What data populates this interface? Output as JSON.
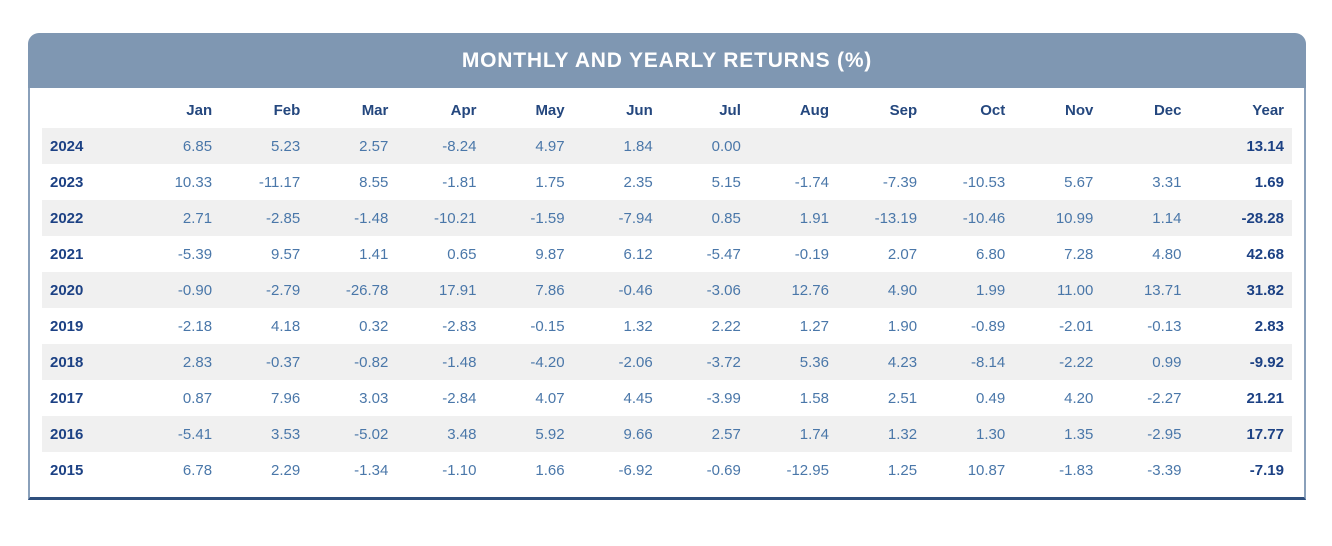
{
  "title": "MONTHLY AND YEARLY RETURNS (%)",
  "colors": {
    "header_band_bg": "#7f97b2",
    "header_band_text": "#ffffff",
    "column_header_text": "#24477e",
    "value_text": "#4a77a9",
    "year_label_text": "#1c4184",
    "stripe_bg": "#f0f0f0",
    "border_side": "#8aa0ba",
    "border_bottom": "#2f4f7d"
  },
  "chart_data": {
    "type": "table",
    "title": "MONTHLY AND YEARLY RETURNS (%)",
    "corner_label": "",
    "month_columns": [
      "Jan",
      "Feb",
      "Mar",
      "Apr",
      "May",
      "Jun",
      "Jul",
      "Aug",
      "Sep",
      "Oct",
      "Nov",
      "Dec"
    ],
    "total_column": "Year",
    "rows": [
      {
        "year": "2024",
        "values": [
          "6.85",
          "5.23",
          "2.57",
          "-8.24",
          "4.97",
          "1.84",
          "0.00",
          "",
          "",
          "",
          "",
          ""
        ],
        "year_total": "13.14"
      },
      {
        "year": "2023",
        "values": [
          "10.33",
          "-11.17",
          "8.55",
          "-1.81",
          "1.75",
          "2.35",
          "5.15",
          "-1.74",
          "-7.39",
          "-10.53",
          "5.67",
          "3.31"
        ],
        "year_total": "1.69"
      },
      {
        "year": "2022",
        "values": [
          "2.71",
          "-2.85",
          "-1.48",
          "-10.21",
          "-1.59",
          "-7.94",
          "0.85",
          "1.91",
          "-13.19",
          "-10.46",
          "10.99",
          "1.14"
        ],
        "year_total": "-28.28"
      },
      {
        "year": "2021",
        "values": [
          "-5.39",
          "9.57",
          "1.41",
          "0.65",
          "9.87",
          "6.12",
          "-5.47",
          "-0.19",
          "2.07",
          "6.80",
          "7.28",
          "4.80"
        ],
        "year_total": "42.68"
      },
      {
        "year": "2020",
        "values": [
          "-0.90",
          "-2.79",
          "-26.78",
          "17.91",
          "7.86",
          "-0.46",
          "-3.06",
          "12.76",
          "4.90",
          "1.99",
          "11.00",
          "13.71"
        ],
        "year_total": "31.82"
      },
      {
        "year": "2019",
        "values": [
          "-2.18",
          "4.18",
          "0.32",
          "-2.83",
          "-0.15",
          "1.32",
          "2.22",
          "1.27",
          "1.90",
          "-0.89",
          "-2.01",
          "-0.13"
        ],
        "year_total": "2.83"
      },
      {
        "year": "2018",
        "values": [
          "2.83",
          "-0.37",
          "-0.82",
          "-1.48",
          "-4.20",
          "-2.06",
          "-3.72",
          "5.36",
          "4.23",
          "-8.14",
          "-2.22",
          "0.99"
        ],
        "year_total": "-9.92"
      },
      {
        "year": "2017",
        "values": [
          "0.87",
          "7.96",
          "3.03",
          "-2.84",
          "4.07",
          "4.45",
          "-3.99",
          "1.58",
          "2.51",
          "0.49",
          "4.20",
          "-2.27"
        ],
        "year_total": "21.21"
      },
      {
        "year": "2016",
        "values": [
          "-5.41",
          "3.53",
          "-5.02",
          "3.48",
          "5.92",
          "9.66",
          "2.57",
          "1.74",
          "1.32",
          "1.30",
          "1.35",
          "-2.95"
        ],
        "year_total": "17.77"
      },
      {
        "year": "2015",
        "values": [
          "6.78",
          "2.29",
          "-1.34",
          "-1.10",
          "1.66",
          "-6.92",
          "-0.69",
          "-12.95",
          "1.25",
          "10.87",
          "-1.83",
          "-3.39"
        ],
        "year_total": "-7.19"
      }
    ]
  }
}
